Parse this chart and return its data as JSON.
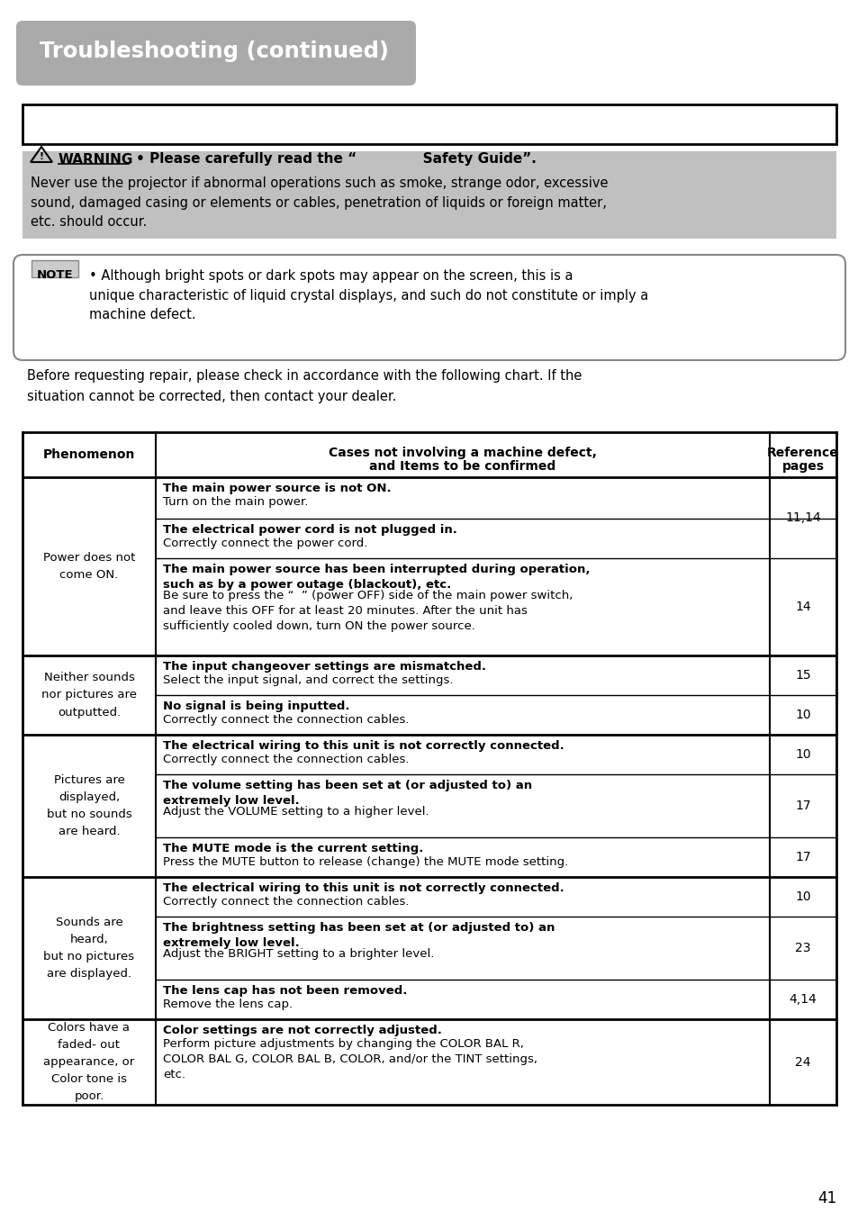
{
  "title": "Troubleshooting (continued)",
  "page_number": "41",
  "warning_header": "• Please carefully read the “              Safety Guide”.",
  "warning_body": "Never use the projector if abnormal operations such as smoke, strange odor, excessive\nsound, damaged casing or elements or cables, penetration of liquids or foreign matter,\netc. should occur.",
  "note_body": "• Although bright spots or dark spots may appear on the screen, this is a\nunique characteristic of liquid crystal displays, and such do not constitute or imply a\nmachine defect.",
  "intro_text": "Before requesting repair, please check in accordance with the following chart. If the\nsituation cannot be corrected, then contact your dealer.",
  "col_headers": [
    "Phenomenon",
    "Cases not involving a machine defect,\nand Items to be confirmed",
    "Reference\npages"
  ],
  "rows": [
    {
      "phenomenon": "Power does not\ncome ON.",
      "sub_rows": [
        {
          "bold": "The main power source is not ON.",
          "normal": "Turn on the main power.",
          "ref": "11,14",
          "ref_rowspan": 2
        },
        {
          "bold": "The electrical power cord is not plugged in.",
          "normal": "Correctly connect the power cord.",
          "ref": null,
          "ref_rowspan": 0
        },
        {
          "bold": "The main power source has been interrupted during operation,\nsuch as by a power outage (blackout), etc.",
          "normal": "Be sure to press the “  ” (power OFF) side of the main power switch,\nand leave this OFF for at least 20 minutes. After the unit has\nsufficiently cooled down, turn ON the power source.",
          "ref": "14",
          "ref_rowspan": 1
        }
      ]
    },
    {
      "phenomenon": "Neither sounds\nnor pictures are\noutputted.",
      "sub_rows": [
        {
          "bold": "The input changeover settings are mismatched.",
          "normal": "Select the input signal, and correct the settings.",
          "ref": "15",
          "ref_rowspan": 1
        },
        {
          "bold": "No signal is being inputted.",
          "normal": "Correctly connect the connection cables.",
          "ref": "10",
          "ref_rowspan": 1
        }
      ]
    },
    {
      "phenomenon": "Pictures are\ndisplayed,\nbut no sounds\nare heard.",
      "sub_rows": [
        {
          "bold": "The electrical wiring to this unit is not correctly connected.",
          "normal": "Correctly connect the connection cables.",
          "ref": "10",
          "ref_rowspan": 1
        },
        {
          "bold": "The volume setting has been set at (or adjusted to) an\nextremely low level.",
          "normal": "Adjust the VOLUME setting to a higher level.",
          "ref": "17",
          "ref_rowspan": 1
        },
        {
          "bold": "The MUTE mode is the current setting.",
          "normal": "Press the MUTE button to release (change) the MUTE mode setting.",
          "ref": "17",
          "ref_rowspan": 1
        }
      ]
    },
    {
      "phenomenon": "Sounds are\nheard,\nbut no pictures\nare displayed.",
      "sub_rows": [
        {
          "bold": "The electrical wiring to this unit is not correctly connected.",
          "normal": "Correctly connect the connection cables.",
          "ref": "10",
          "ref_rowspan": 1
        },
        {
          "bold": "The brightness setting has been set at (or adjusted to) an\nextremely low level.",
          "normal": "Adjust the BRIGHT setting to a brighter level.",
          "ref": "23",
          "ref_rowspan": 1
        },
        {
          "bold": "The lens cap has not been removed.",
          "normal": "Remove the lens cap.",
          "ref": "4,14",
          "ref_rowspan": 1
        }
      ]
    },
    {
      "phenomenon": "Colors have a\nfaded- out\nappearance, or\nColor tone is\npoor.",
      "sub_rows": [
        {
          "bold": "Color settings are not correctly adjusted.",
          "normal": "Perform picture adjustments by changing the COLOR BAL R,\nCOLOR BAL G, COLOR BAL B, COLOR, and/or the TINT settings,\netc.",
          "ref": "24",
          "ref_rowspan": 1
        }
      ]
    }
  ],
  "subrow_heights": [
    [
      46,
      44,
      108
    ],
    [
      44,
      44
    ],
    [
      44,
      70,
      44
    ],
    [
      44,
      70,
      44
    ],
    [
      95
    ]
  ],
  "title_bg": "#aaaaaa",
  "warning_bg": "#c0c0c0",
  "note_border": "#888888",
  "note_label_bg": "#cccccc"
}
